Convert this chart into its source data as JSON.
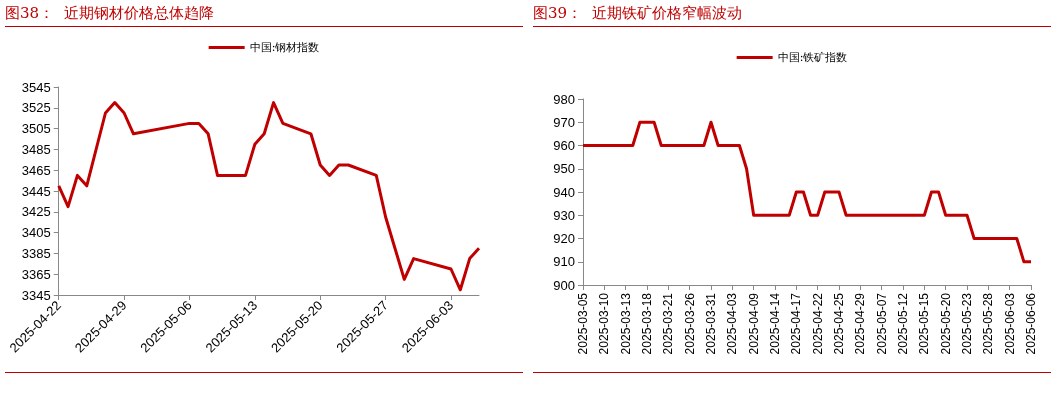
{
  "chart_data": [
    {
      "type": "line",
      "title": "图38：  近期钢材价格总体趋降",
      "legend": "top",
      "grid": false,
      "marker": "none",
      "line_style": "solid",
      "x": [
        "2025-04-22",
        "2025-04-23",
        "2025-04-24",
        "2025-04-25",
        "2025-04-27",
        "2025-04-28",
        "2025-04-29",
        "2025-04-30",
        "2025-05-06",
        "2025-05-07",
        "2025-05-08",
        "2025-05-09",
        "2025-05-12",
        "2025-05-13",
        "2025-05-14",
        "2025-05-15",
        "2025-05-16",
        "2025-05-19",
        "2025-05-20",
        "2025-05-21",
        "2025-05-22",
        "2025-05-23",
        "2025-05-26",
        "2025-05-27",
        "2025-05-28",
        "2025-05-29",
        "2025-05-30",
        "2025-06-03",
        "2025-06-04",
        "2025-06-05",
        "2025-06-06"
      ],
      "series": [
        {
          "name": "中国:钢材指数",
          "color": "#c00000",
          "values": [
            3450,
            3430,
            3460,
            3450,
            3520,
            3530,
            3520,
            3500,
            3510,
            3510,
            3500,
            3460,
            3460,
            3490,
            3500,
            3530,
            3510,
            3500,
            3470,
            3460,
            3470,
            3470,
            3460,
            3420,
            3390,
            3360,
            3380,
            3370,
            3350,
            3380,
            3390
          ]
        }
      ],
      "xlim": [
        "2025-04-22",
        "2025-06-06"
      ],
      "xticks": [
        "2025-04-22",
        "2025-04-29",
        "2025-05-06",
        "2025-05-13",
        "2025-05-20",
        "2025-05-27",
        "2025-06-03"
      ],
      "ylim": [
        3345,
        3545
      ],
      "yticks": [
        3345,
        3365,
        3385,
        3405,
        3425,
        3445,
        3465,
        3485,
        3505,
        3525,
        3545
      ]
    },
    {
      "type": "line",
      "title": "图39：  近期铁矿价格窄幅波动",
      "legend": "top",
      "grid": false,
      "marker": "none",
      "line_style": "solid",
      "categories": [
        "2025-03-05",
        null,
        null,
        "2025-03-10",
        null,
        null,
        "2025-03-13",
        null,
        null,
        "2025-03-18",
        null,
        null,
        "2025-03-21",
        null,
        null,
        "2025-03-26",
        null,
        null,
        "2025-03-31",
        null,
        null,
        "2025-04-03",
        null,
        null,
        "2025-04-09",
        null,
        null,
        "2025-04-14",
        null,
        null,
        "2025-04-17",
        null,
        null,
        "2025-04-22",
        null,
        null,
        "2025-04-25",
        null,
        null,
        "2025-04-29",
        null,
        null,
        "2025-05-07",
        null,
        null,
        "2025-05-12",
        null,
        null,
        "2025-05-15",
        null,
        null,
        "2025-05-20",
        null,
        null,
        "2025-05-23",
        null,
        null,
        "2025-05-28",
        null,
        null,
        "2025-06-03",
        null,
        null,
        "2025-06-06"
      ],
      "series": [
        {
          "name": "中国:铁矿指数",
          "color": "#c00000",
          "values": [
            960,
            960,
            960,
            960,
            960,
            960,
            960,
            960,
            970,
            970,
            970,
            960,
            960,
            960,
            960,
            960,
            960,
            960,
            970,
            960,
            960,
            960,
            960,
            950,
            930,
            930,
            930,
            930,
            930,
            930,
            940,
            940,
            930,
            930,
            940,
            940,
            940,
            930,
            930,
            930,
            930,
            930,
            930,
            930,
            930,
            930,
            930,
            930,
            930,
            940,
            940,
            930,
            930,
            930,
            930,
            920,
            920,
            920,
            920,
            920,
            920,
            920,
            910,
            910
          ]
        }
      ],
      "ylim": [
        900,
        980
      ],
      "yticks": [
        900,
        910,
        920,
        930,
        940,
        950,
        960,
        970,
        980
      ]
    }
  ]
}
